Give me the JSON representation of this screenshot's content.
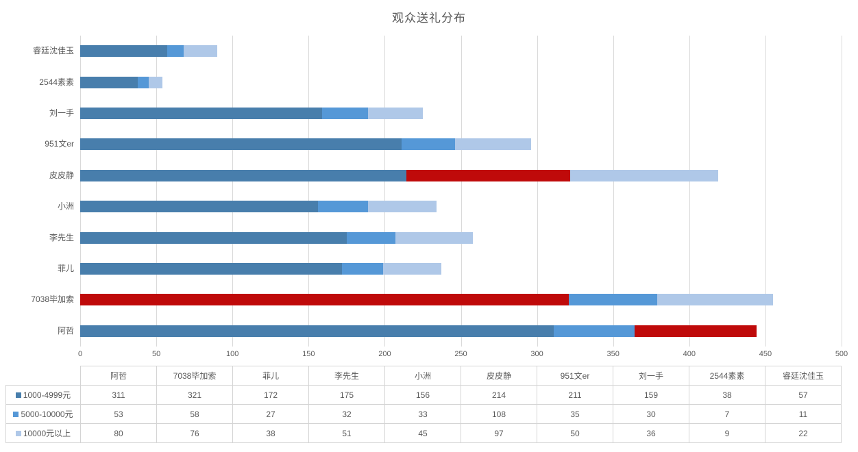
{
  "title": "观众送礼分布",
  "chart_data": {
    "type": "bar",
    "variant": "horizontal-stacked",
    "title": "观众送礼分布",
    "categories": [
      "阿哲",
      "7038毕加索",
      "菲儿",
      "李先生",
      "小洲",
      "皮皮静",
      "951文er",
      "刘一手",
      "2544素素",
      "睿廷沈佳玉"
    ],
    "series": [
      {
        "name": "1000-4999元",
        "color": "#487EAC",
        "values": [
          311,
          321,
          172,
          175,
          156,
          214,
          211,
          159,
          38,
          57
        ],
        "highlight_index": 1
      },
      {
        "name": "5000-10000元",
        "color": "#5598D7",
        "values": [
          53,
          58,
          27,
          32,
          33,
          108,
          35,
          30,
          7,
          11
        ],
        "highlight_index": 5
      },
      {
        "name": "10000元以上",
        "color": "#AFC8E8",
        "values": [
          80,
          76,
          38,
          51,
          45,
          97,
          50,
          36,
          9,
          22
        ],
        "highlight_index": 0
      }
    ],
    "highlight_color": "#BF0A0A",
    "xlim": [
      0,
      500
    ],
    "x_ticks": [
      0,
      50,
      100,
      150,
      200,
      250,
      300,
      350,
      400,
      450,
      500
    ],
    "row_order": "reversed (first category 阿哲 is drawn at the bottom of the chart)",
    "grid": "vertical-only",
    "legend_position": "table-left-column",
    "data_table_shown": true
  },
  "colors": {
    "background": "#FFFFFF",
    "gridline": "#D9D9D9",
    "text": "#595959",
    "table_border": "#D4D4D4"
  }
}
